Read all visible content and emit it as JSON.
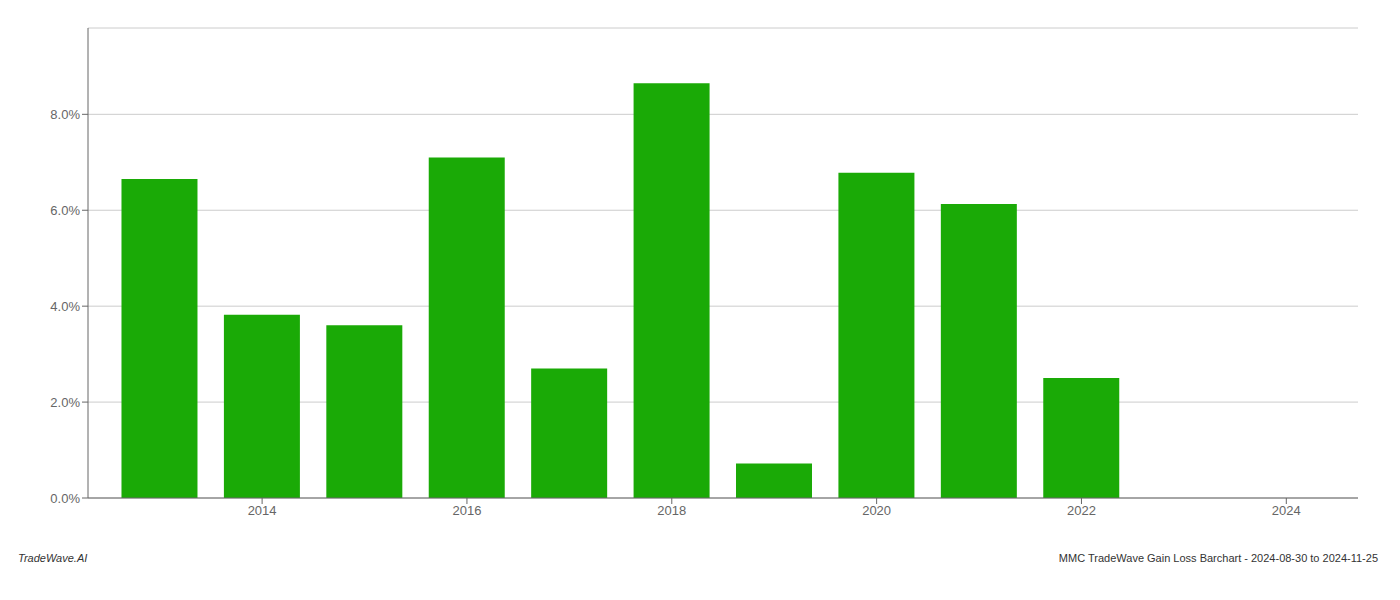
{
  "chart_data": {
    "type": "bar",
    "x": [
      2013,
      2014,
      2015,
      2016,
      2017,
      2018,
      2019,
      2020,
      2021,
      2022,
      2023
    ],
    "values": [
      6.65,
      3.82,
      3.6,
      7.1,
      2.7,
      8.65,
      0.72,
      6.78,
      6.13,
      2.5,
      0.0
    ],
    "color": "#1aaa06",
    "xlim": [
      2012.3,
      2024.7
    ],
    "xticks": [
      2014,
      2016,
      2018,
      2020,
      2022,
      2024
    ],
    "ylim": [
      0,
      9.8
    ],
    "yticks": [
      {
        "value": 0.0,
        "label": "0.0%"
      },
      {
        "value": 2.0,
        "label": "2.0%"
      },
      {
        "value": 4.0,
        "label": "4.0%"
      },
      {
        "value": 6.0,
        "label": "6.0%"
      },
      {
        "value": 8.0,
        "label": "8.0%"
      }
    ],
    "grid": true,
    "annotations": [
      "TradeWave.AI",
      "MMC TradeWave Gain Loss Barchart - 2024-08-30 to 2024-11-25"
    ]
  }
}
